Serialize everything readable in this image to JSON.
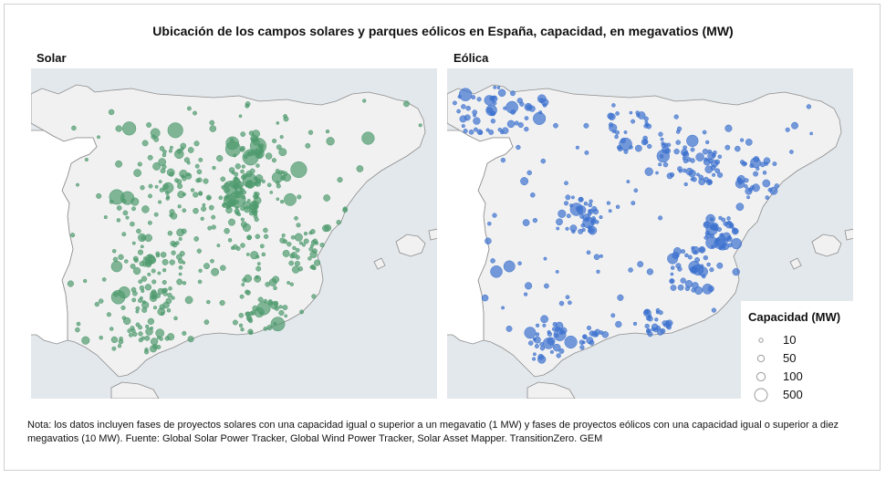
{
  "title": "Ubicación de los campos solares y parques eólicos en España, capacidad, en megavatios (MW)",
  "panels": {
    "solar": {
      "label": "Solar",
      "color": "#4e9a6e"
    },
    "wind": {
      "label": "Eólica",
      "color": "#3d72cf"
    }
  },
  "legend": {
    "title": "Capacidad (MW)",
    "items": [
      {
        "label": "10",
        "value": 10
      },
      {
        "label": "50",
        "value": 50
      },
      {
        "label": "100",
        "value": 100
      },
      {
        "label": "500",
        "value": 500
      }
    ]
  },
  "note": "Nota: los datos incluyen fases de proyectos solares con una capacidad igual o superior a un megavatio (1 MW) y fases de proyectos eólicos con una capacidad igual o superior a diez megavatios (10 MW). Fuente: Global Solar Power Tracker, Global Wind Power Tracker, Solar Asset Mapper.  TransitionZero. GEM",
  "colors": {
    "sea": "#e3e8ec",
    "land": "#f1f1f1",
    "portugal": "#ffffff",
    "border": "#8c8c8c"
  }
}
